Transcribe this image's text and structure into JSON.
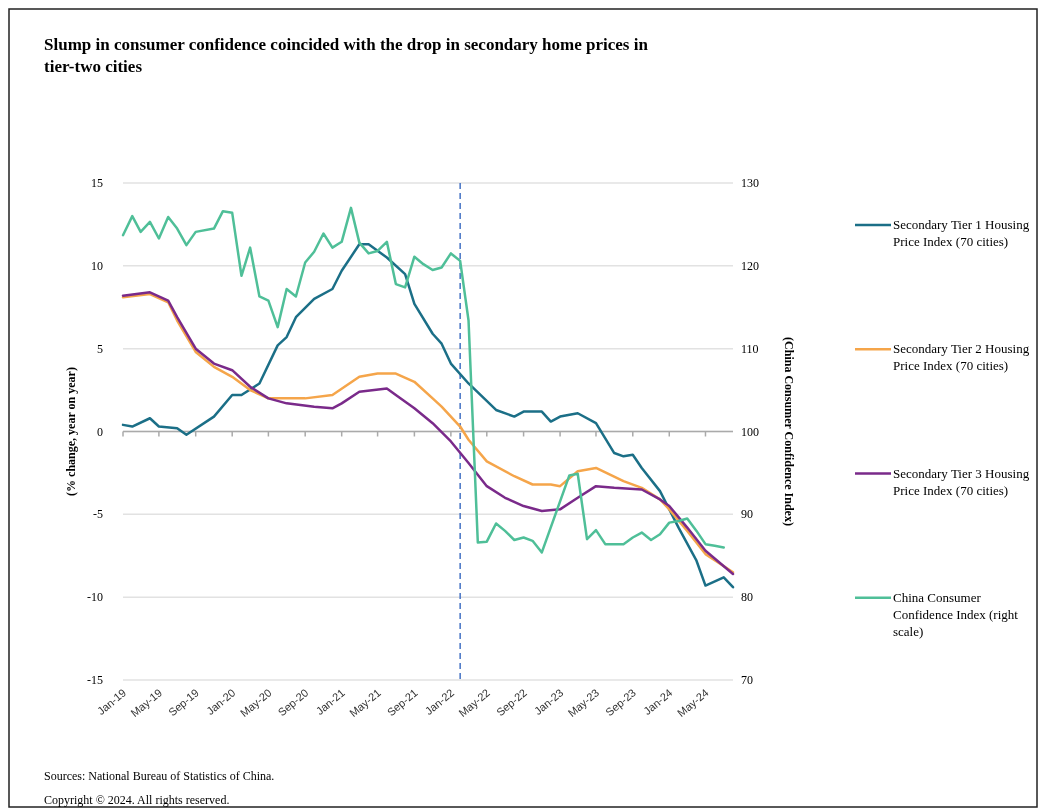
{
  "chart_data": {
    "type": "line",
    "title": "Slump in consumer confidence coincided with the drop in secondary home prices in tier-two cities",
    "ylabel": "(% change, year on year)",
    "y2label": "(China Consumer Confidence Index)",
    "xlim": [
      "2019-01",
      "2024-08"
    ],
    "xticks": [
      {
        "value": "2019-01",
        "label": "Jan-19"
      },
      {
        "value": "2019-05",
        "label": "May-19"
      },
      {
        "value": "2019-09",
        "label": "Sep-19"
      },
      {
        "value": "2020-01",
        "label": "Jan-20"
      },
      {
        "value": "2020-05",
        "label": "May-20"
      },
      {
        "value": "2020-09",
        "label": "Sep-20"
      },
      {
        "value": "2021-01",
        "label": "Jan-21"
      },
      {
        "value": "2021-05",
        "label": "May-21"
      },
      {
        "value": "2021-09",
        "label": "Sep-21"
      },
      {
        "value": "2022-01",
        "label": "Jan-22"
      },
      {
        "value": "2022-05",
        "label": "May-22"
      },
      {
        "value": "2022-09",
        "label": "Sep-22"
      },
      {
        "value": "2023-01",
        "label": "Jan-23"
      },
      {
        "value": "2023-05",
        "label": "May-23"
      },
      {
        "value": "2023-09",
        "label": "Sep-23"
      },
      {
        "value": "2024-01",
        "label": "Jan-24"
      },
      {
        "value": "2024-05",
        "label": "May-24"
      }
    ],
    "ylim": [
      -15,
      15
    ],
    "yticks": [
      -15,
      -10,
      -5,
      0,
      5,
      10,
      15
    ],
    "y2lim": [
      70,
      130
    ],
    "y2ticks": [
      70,
      80,
      90,
      100,
      110,
      120,
      130
    ],
    "grid": "y",
    "legend": "right",
    "series": [
      {
        "name": "Secondary Tier 1 Housing Price Index (70 cities)",
        "color": "#1b6f87",
        "x": [
          "2019-01",
          "2019-02",
          "2019-04",
          "2019-05",
          "2019-07",
          "2019-08",
          "2019-11",
          "2020-01",
          "2020-02",
          "2020-04",
          "2020-06",
          "2020-07",
          "2020-08",
          "2020-10",
          "2020-12",
          "2021-01",
          "2021-03",
          "2021-04",
          "2021-06",
          "2021-08",
          "2021-09",
          "2021-11",
          "2021-12",
          "2022-01",
          "2022-03",
          "2022-06",
          "2022-08",
          "2022-09",
          "2022-11",
          "2022-12",
          "2023-01",
          "2023-03",
          "2023-05",
          "2023-07",
          "2023-08",
          "2023-09",
          "2023-10",
          "2023-12",
          "2024-02",
          "2024-04",
          "2024-05",
          "2024-07",
          "2024-08"
        ],
        "values": [
          0.4,
          0.3,
          0.8,
          0.3,
          0.2,
          -0.2,
          0.9,
          2.2,
          2.2,
          2.9,
          5.2,
          5.7,
          6.9,
          8.0,
          8.6,
          9.7,
          11.3,
          11.3,
          10.5,
          9.5,
          7.7,
          5.9,
          5.3,
          4.1,
          2.9,
          1.3,
          0.9,
          1.2,
          1.2,
          0.6,
          0.9,
          1.1,
          0.5,
          -1.3,
          -1.5,
          -1.4,
          -2.2,
          -3.6,
          -5.8,
          -7.8,
          -9.3,
          -8.8,
          -9.4
        ]
      },
      {
        "name": "Secondary Tier 2 Housing Price Index (70 cities)",
        "color": "#f5a54a",
        "x": [
          "2019-01",
          "2019-04",
          "2019-06",
          "2019-07",
          "2019-09",
          "2019-11",
          "2020-01",
          "2020-03",
          "2020-05",
          "2020-09",
          "2020-12",
          "2021-03",
          "2021-05",
          "2021-07",
          "2021-09",
          "2021-11",
          "2021-12",
          "2022-02",
          "2022-03",
          "2022-05",
          "2022-08",
          "2022-10",
          "2022-12",
          "2023-01",
          "2023-03",
          "2023-05",
          "2023-08",
          "2023-10",
          "2023-12",
          "2024-01",
          "2024-03",
          "2024-05",
          "2024-08"
        ],
        "values": [
          8.1,
          8.3,
          7.8,
          6.7,
          4.8,
          3.9,
          3.3,
          2.5,
          2.0,
          2.0,
          2.2,
          3.3,
          3.5,
          3.5,
          3.0,
          2.0,
          1.5,
          0.3,
          -0.5,
          -1.8,
          -2.7,
          -3.2,
          -3.2,
          -3.3,
          -2.4,
          -2.2,
          -3.0,
          -3.4,
          -4.1,
          -4.7,
          -6.0,
          -7.4,
          -8.5
        ]
      },
      {
        "name": "Secondary Tier 3 Housing Price Index (70 cities)",
        "color": "#7a2a8a",
        "x": [
          "2019-01",
          "2019-04",
          "2019-06",
          "2019-07",
          "2019-09",
          "2019-11",
          "2020-01",
          "2020-03",
          "2020-05",
          "2020-07",
          "2020-10",
          "2020-12",
          "2021-01",
          "2021-03",
          "2021-06",
          "2021-07",
          "2021-09",
          "2021-11",
          "2022-01",
          "2022-03",
          "2022-05",
          "2022-07",
          "2022-09",
          "2022-11",
          "2023-01",
          "2023-03",
          "2023-05",
          "2023-07",
          "2023-10",
          "2023-12",
          "2024-01",
          "2024-03",
          "2024-05",
          "2024-08"
        ],
        "values": [
          8.2,
          8.4,
          7.9,
          6.9,
          5.0,
          4.1,
          3.7,
          2.7,
          2.0,
          1.7,
          1.5,
          1.4,
          1.7,
          2.4,
          2.6,
          2.2,
          1.4,
          0.5,
          -0.6,
          -1.9,
          -3.3,
          -4.0,
          -4.5,
          -4.8,
          -4.7,
          -4.0,
          -3.3,
          -3.4,
          -3.5,
          -4.1,
          -4.5,
          -5.8,
          -7.2,
          -8.6
        ]
      },
      {
        "name": "China Consumer Confidence Index (right scale)",
        "color": "#4fbf98",
        "axis": "y2",
        "x": [
          "2019-01",
          "2019-02",
          "2019-03",
          "2019-04",
          "2019-05",
          "2019-06",
          "2019-07",
          "2019-08",
          "2019-09",
          "2019-11",
          "2019-12",
          "2020-01",
          "2020-02",
          "2020-03",
          "2020-04",
          "2020-05",
          "2020-06",
          "2020-07",
          "2020-08",
          "2020-09",
          "2020-10",
          "2020-11",
          "2020-12",
          "2021-01",
          "2021-02",
          "2021-03",
          "2021-04",
          "2021-05",
          "2021-06",
          "2021-07",
          "2021-08",
          "2021-09",
          "2021-10",
          "2021-11",
          "2021-12",
          "2022-01",
          "2022-02",
          "2022-03",
          "2022-04",
          "2022-05",
          "2022-06",
          "2022-07",
          "2022-08",
          "2022-09",
          "2022-10",
          "2022-11",
          "2023-02",
          "2023-03",
          "2023-04",
          "2023-05",
          "2023-06",
          "2023-08",
          "2023-09",
          "2023-10",
          "2023-11",
          "2023-12",
          "2024-01",
          "2024-02",
          "2024-03",
          "2024-04",
          "2024-05",
          "2024-06",
          "2024-07"
        ],
        "values": [
          123.7,
          126.0,
          124.1,
          125.3,
          123.3,
          125.9,
          124.5,
          122.5,
          124.1,
          124.5,
          126.6,
          126.4,
          118.8,
          122.2,
          116.3,
          115.8,
          112.6,
          117.2,
          116.3,
          120.4,
          121.7,
          123.9,
          122.2,
          122.9,
          127.0,
          122.8,
          121.5,
          121.8,
          122.9,
          117.8,
          117.4,
          121.1,
          120.2,
          119.5,
          119.8,
          121.5,
          120.6,
          113.4,
          86.6,
          86.7,
          88.9,
          88.0,
          86.9,
          87.2,
          86.8,
          85.4,
          94.7,
          94.9,
          87.0,
          88.1,
          86.4,
          86.4,
          87.2,
          87.8,
          86.9,
          87.6,
          89.0,
          89.2,
          89.5,
          88.0,
          86.4,
          86.2,
          86.0
        ]
      }
    ],
    "ref_lines": [
      {
        "axis": "x",
        "value": "2022-02",
        "color": "#4472c4",
        "line_style": "dashed"
      }
    ],
    "annotations": [
      "Sources: National Bureau of Statistics of China.",
      "Copyright © 2024. All rights reserved."
    ]
  }
}
